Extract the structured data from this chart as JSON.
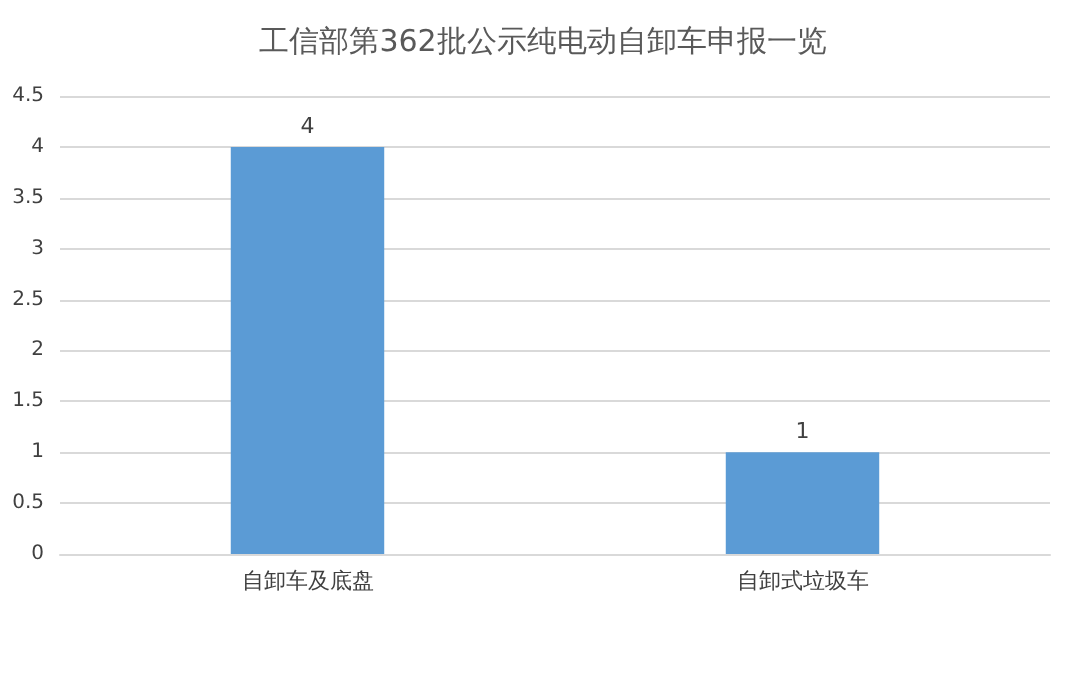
{
  "chart_data": {
    "type": "bar",
    "title": "工信部第362批公示纯电动自卸车申报一览",
    "categories": [
      "自卸车及底盘",
      "自卸式垃圾车"
    ],
    "values": [
      4,
      1
    ],
    "color": "#5b9bd5",
    "ylim": [
      0,
      4.5
    ],
    "yticks": [
      0,
      0.5,
      1,
      1.5,
      2,
      2.5,
      3,
      3.5,
      4,
      4.5
    ],
    "grid": "y",
    "data_labels": true
  }
}
